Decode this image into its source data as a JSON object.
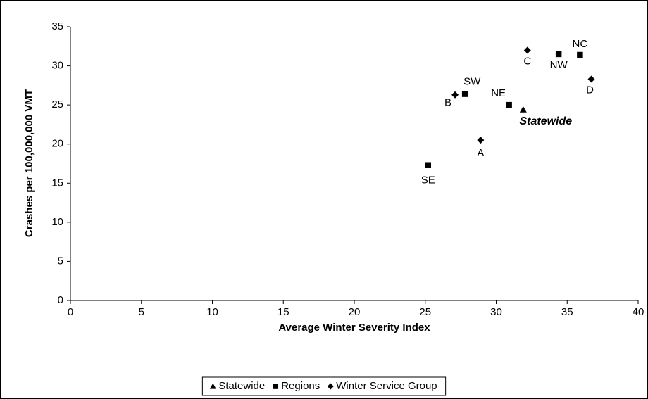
{
  "chart_data": {
    "type": "scatter",
    "x_label": "Average Winter Severity Index",
    "y_label": "Crashes per 100,000,000 VMT",
    "xlim": [
      0,
      40
    ],
    "xticks": [
      0,
      5,
      10,
      15,
      20,
      25,
      30,
      35,
      40
    ],
    "ylim": [
      0,
      35
    ],
    "yticks": [
      0,
      5,
      10,
      15,
      20,
      25,
      30,
      35
    ],
    "legend": "bottom",
    "series": [
      {
        "name": "Statewide",
        "marker": "triangle",
        "color": "#000000",
        "x": [
          31.9
        ],
        "values": [
          24.4
        ],
        "labels": [
          "Statewide"
        ]
      },
      {
        "name": "Regions",
        "marker": "square",
        "color": "#000000",
        "x": [
          30.9,
          25.2,
          27.8,
          34.4,
          35.9
        ],
        "values": [
          25.0,
          17.3,
          26.4,
          31.5,
          31.4
        ],
        "labels": [
          "NE",
          "SE",
          "SW",
          "NW",
          "NC"
        ]
      },
      {
        "name": "Winter Service Group",
        "marker": "diamond",
        "color": "#000000",
        "x": [
          27.1,
          28.9,
          32.2,
          36.7
        ],
        "values": [
          26.3,
          20.5,
          32.0,
          28.3
        ],
        "labels": [
          "B",
          "A",
          "C",
          "D"
        ]
      }
    ]
  }
}
